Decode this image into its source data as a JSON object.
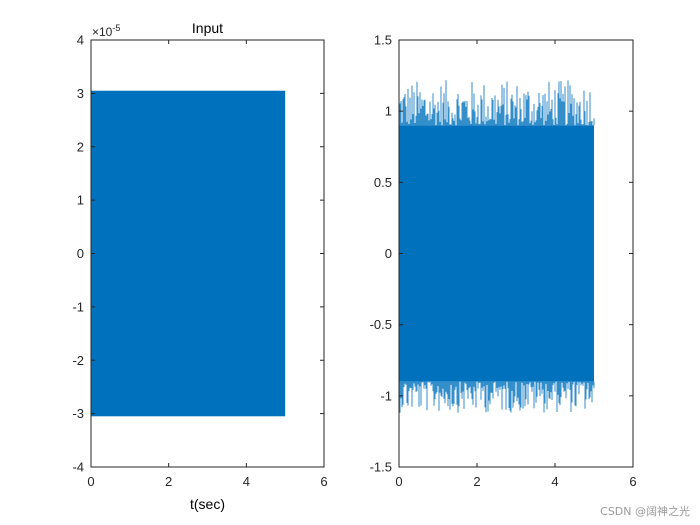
{
  "chart_data": [
    {
      "type": "area",
      "title": "Input",
      "xlabel": "t(sec)",
      "ylabel": "",
      "xlim": [
        0,
        6
      ],
      "ylim": [
        -4,
        4
      ],
      "xticks": [
        "0",
        "2",
        "4",
        "6"
      ],
      "yticks": [
        "-4",
        "-3",
        "-2",
        "-1",
        "0",
        "1",
        "2",
        "3",
        "4"
      ],
      "y_exponent_base": "×10",
      "y_exponent_power": "-5",
      "y_scale": 1e-05,
      "color": "#0072BD",
      "grid": false,
      "series": [
        {
          "x": [
            0,
            5
          ],
          "y_upper": [
            3.05,
            3.05
          ],
          "y_lower": [
            -3.05,
            -3.05
          ]
        }
      ]
    },
    {
      "type": "area",
      "title": "",
      "xlabel": "",
      "ylabel": "",
      "xlim": [
        0,
        6
      ],
      "ylim": [
        -1.5,
        1.5
      ],
      "xticks": [
        "0",
        "2",
        "4",
        "6"
      ],
      "yticks": [
        "-1.5",
        "-1",
        "-0.5",
        "0",
        "0.5",
        "1",
        "1.5"
      ],
      "color": "#0072BD",
      "grid": false,
      "series": [
        {
          "x": [
            0,
            5
          ],
          "y_upper": [
            0.9,
            0.9
          ],
          "y_lower": [
            -0.9,
            -0.9
          ],
          "peak_max": 1.22,
          "peak_min": -1.12
        }
      ]
    }
  ],
  "watermark": "CSDN @阔神之光"
}
